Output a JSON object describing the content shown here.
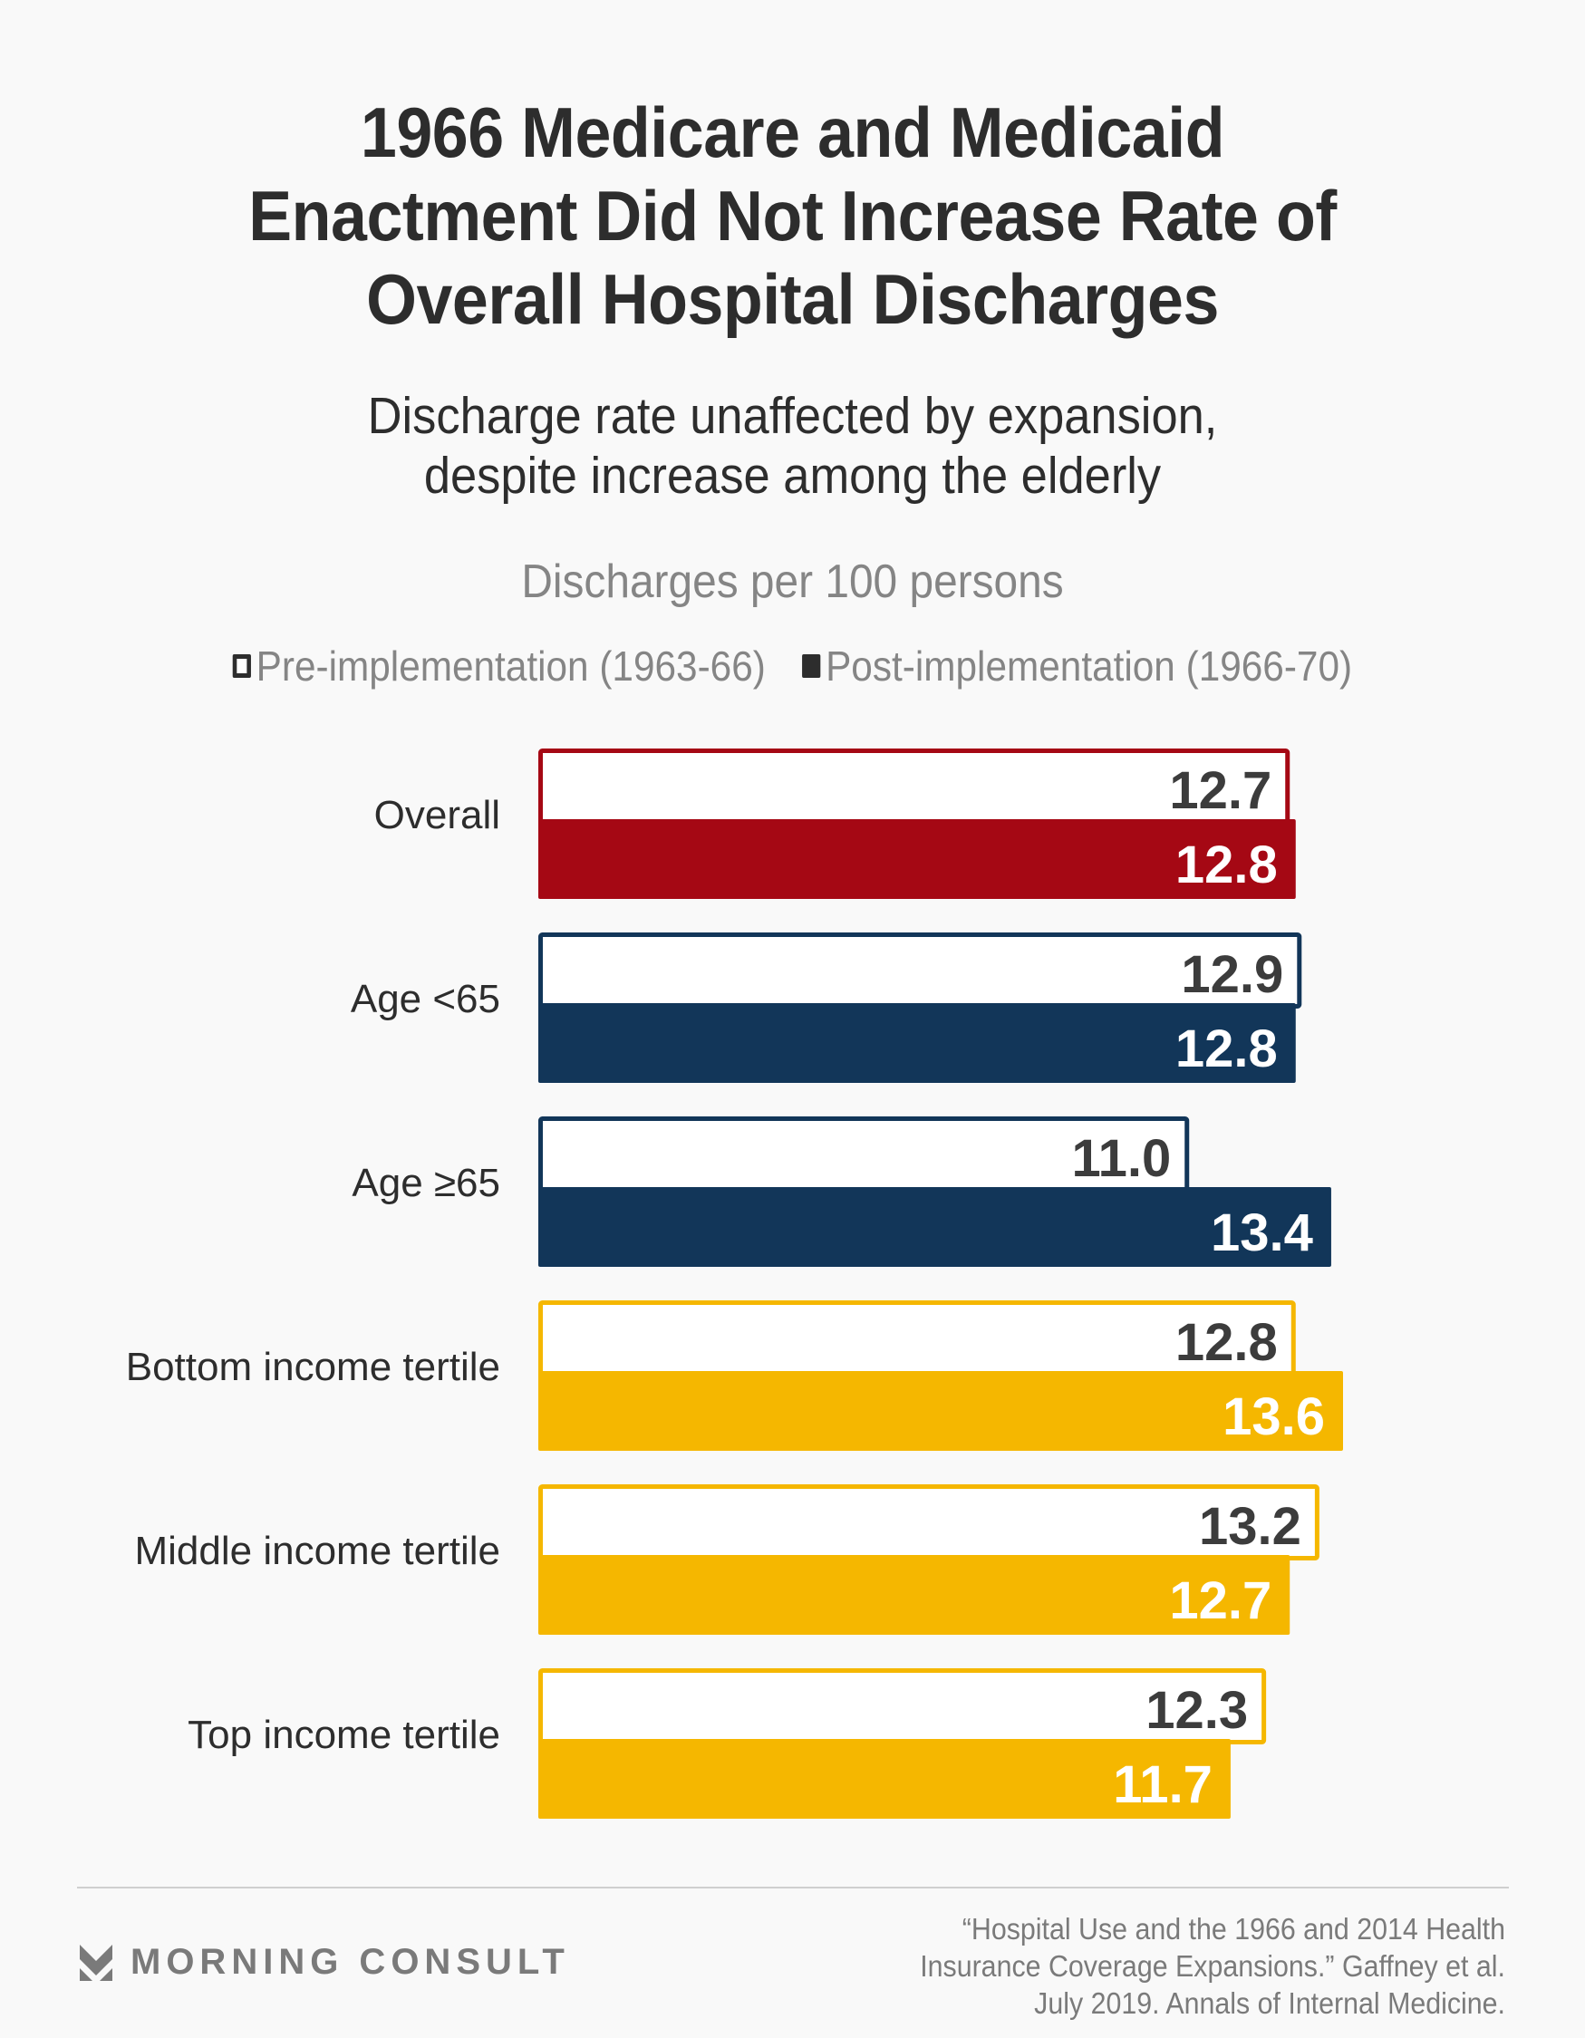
{
  "header": {
    "title_lines": [
      "1966 Medicare and Medicaid",
      "Enactment Did Not Increase Rate of",
      "Overall Hospital Discharges"
    ],
    "subtitle_lines": [
      "Discharge rate unaffected by expansion,",
      "despite increase among the elderly"
    ]
  },
  "colors": {
    "overall": "#a50814",
    "age": "#123659",
    "income": "#f5b700",
    "value_text_dark": "#3c3c3c",
    "value_text_light": "#ffffff"
  },
  "chart_data": {
    "type": "bar",
    "orientation": "horizontal",
    "title": "1966 Medicare and Medicaid Enactment Did Not Increase Rate of Overall Hospital Discharges",
    "subtitle": "Discharge rate unaffected by expansion, despite increase among the elderly",
    "unit_label": "Discharges per 100 persons",
    "xlabel": "",
    "ylabel": "",
    "xlim": [
      0,
      13.6
    ],
    "grid": false,
    "legend_position": "top-center",
    "categories": [
      "Overall",
      "Age <65",
      "Age ≥65",
      "Bottom income tertile",
      "Middle income tertile",
      "Top income tertile"
    ],
    "category_groups": [
      "overall",
      "age",
      "age",
      "income",
      "income",
      "income"
    ],
    "series": [
      {
        "name": "Pre-implementation (1963-66)",
        "style": "outline",
        "values": [
          12.7,
          12.9,
          11.0,
          12.8,
          13.2,
          12.3
        ]
      },
      {
        "name": "Post-implementation (1966-70)",
        "style": "filled",
        "values": [
          12.8,
          12.8,
          13.4,
          13.6,
          12.7,
          11.7
        ]
      }
    ],
    "data_labels": [
      [
        "12.7",
        "12.9",
        "11.0",
        "12.8",
        "13.2",
        "12.3"
      ],
      [
        "12.8",
        "12.8",
        "13.4",
        "13.6",
        "12.7",
        "11.7"
      ]
    ]
  },
  "footer": {
    "brand": "MORNING CONSULT",
    "source_lines": [
      "“Hospital Use and the 1966 and 2014 Health",
      "Insurance Coverage Expansions.” Gaffney et al.",
      "July 2019. Annals of Internal Medicine."
    ]
  }
}
